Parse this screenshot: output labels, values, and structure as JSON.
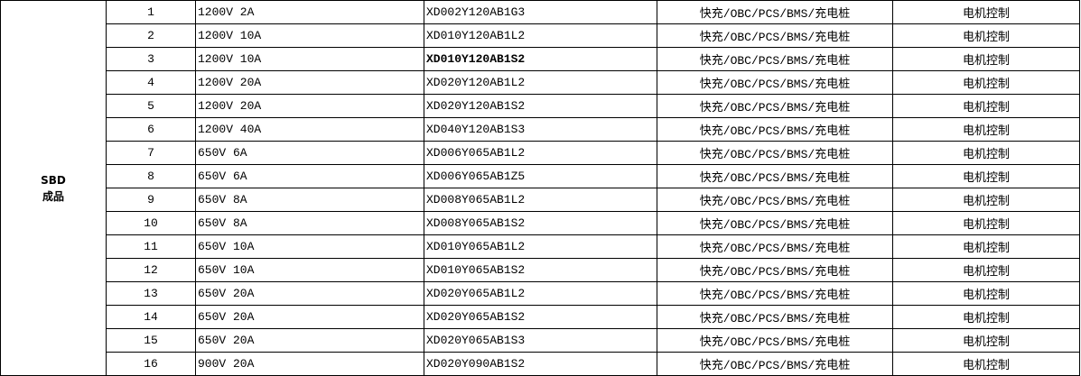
{
  "category": {
    "line1": "SBD",
    "line2": "成品"
  },
  "rows": [
    {
      "no": "1",
      "spec": "1200V 2A",
      "part": "XD002Y120AB1G3",
      "application": "快充/OBC/PCS/BMS/充电桩",
      "control": "电机控制",
      "bold": false
    },
    {
      "no": "2",
      "spec": "1200V 10A",
      "part": "XD010Y120AB1L2",
      "application": "快充/OBC/PCS/BMS/充电桩",
      "control": "电机控制",
      "bold": false
    },
    {
      "no": "3",
      "spec": "1200V 10A",
      "part": "XD010Y120AB1S2",
      "application": "快充/OBC/PCS/BMS/充电桩",
      "control": "电机控制",
      "bold": true
    },
    {
      "no": "4",
      "spec": "1200V 20A",
      "part": "XD020Y120AB1L2",
      "application": "快充/OBC/PCS/BMS/充电桩",
      "control": "电机控制",
      "bold": false
    },
    {
      "no": "5",
      "spec": "1200V 20A",
      "part": "XD020Y120AB1S2",
      "application": "快充/OBC/PCS/BMS/充电桩",
      "control": "电机控制",
      "bold": false
    },
    {
      "no": "6",
      "spec": "1200V 40A",
      "part": "XD040Y120AB1S3",
      "application": "快充/OBC/PCS/BMS/充电桩",
      "control": "电机控制",
      "bold": false
    },
    {
      "no": "7",
      "spec": "650V 6A",
      "part": "XD006Y065AB1L2",
      "application": "快充/OBC/PCS/BMS/充电桩",
      "control": "电机控制",
      "bold": false
    },
    {
      "no": "8",
      "spec": "650V 6A",
      "part": "XD006Y065AB1Z5",
      "application": "快充/OBC/PCS/BMS/充电桩",
      "control": "电机控制",
      "bold": false
    },
    {
      "no": "9",
      "spec": "650V 8A",
      "part": "XD008Y065AB1L2",
      "application": "快充/OBC/PCS/BMS/充电桩",
      "control": "电机控制",
      "bold": false
    },
    {
      "no": "10",
      "spec": "650V 8A",
      "part": "XD008Y065AB1S2",
      "application": "快充/OBC/PCS/BMS/充电桩",
      "control": "电机控制",
      "bold": false
    },
    {
      "no": "11",
      "spec": "650V 10A",
      "part": "XD010Y065AB1L2",
      "application": "快充/OBC/PCS/BMS/充电桩",
      "control": "电机控制",
      "bold": false
    },
    {
      "no": "12",
      "spec": "650V 10A",
      "part": "XD010Y065AB1S2",
      "application": "快充/OBC/PCS/BMS/充电桩",
      "control": "电机控制",
      "bold": false
    },
    {
      "no": "13",
      "spec": "650V 20A",
      "part": "XD020Y065AB1L2",
      "application": "快充/OBC/PCS/BMS/充电桩",
      "control": "电机控制",
      "bold": false
    },
    {
      "no": "14",
      "spec": "650V 20A",
      "part": "XD020Y065AB1S2",
      "application": "快充/OBC/PCS/BMS/充电桩",
      "control": "电机控制",
      "bold": false
    },
    {
      "no": "15",
      "spec": "650V 20A",
      "part": "XD020Y065AB1S3",
      "application": "快充/OBC/PCS/BMS/充电桩",
      "control": "电机控制",
      "bold": false
    },
    {
      "no": "16",
      "spec": "900V 20A",
      "part": "XD020Y090AB1S2",
      "application": "快充/OBC/PCS/BMS/充电桩",
      "control": "电机控制",
      "bold": false
    }
  ]
}
